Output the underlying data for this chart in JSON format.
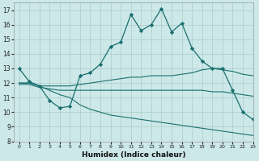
{
  "xlabel": "Humidex (Indice chaleur)",
  "background_color": "#cce8e8",
  "grid_color": "#aacccc",
  "line_color": "#1a6e6e",
  "xlim": [
    -0.5,
    23
  ],
  "ylim": [
    8,
    17.5
  ],
  "xticks": [
    0,
    1,
    2,
    3,
    4,
    5,
    6,
    7,
    8,
    9,
    10,
    11,
    12,
    13,
    14,
    15,
    16,
    17,
    18,
    19,
    20,
    21,
    22,
    23
  ],
  "yticks": [
    8,
    9,
    10,
    11,
    12,
    13,
    14,
    15,
    16,
    17
  ],
  "series": [
    {
      "x": [
        0,
        1,
        2,
        3,
        4,
        5,
        6,
        7,
        8,
        9,
        10,
        11,
        12,
        13,
        14,
        15,
        16,
        17,
        18,
        19,
        20,
        21,
        22,
        23
      ],
      "y": [
        13,
        12.1,
        11.8,
        10.8,
        10.3,
        10.4,
        12.5,
        12.7,
        13.3,
        14.5,
        14.8,
        16.7,
        15.6,
        16.0,
        17.1,
        15.5,
        16.1,
        14.4,
        13.5,
        13.0,
        13.0,
        11.5,
        10.0,
        9.5
      ],
      "marker": true
    },
    {
      "x": [
        0,
        1,
        2,
        3,
        4,
        5,
        6,
        7,
        8,
        9,
        10,
        11,
        12,
        13,
        14,
        15,
        16,
        17,
        18,
        19,
        20,
        21,
        22,
        23
      ],
      "y": [
        12.0,
        12.0,
        11.8,
        11.8,
        11.8,
        11.8,
        11.9,
        12.0,
        12.1,
        12.2,
        12.3,
        12.4,
        12.4,
        12.5,
        12.5,
        12.5,
        12.6,
        12.7,
        12.9,
        13.0,
        12.9,
        12.8,
        12.6,
        12.5
      ],
      "marker": false
    },
    {
      "x": [
        0,
        1,
        2,
        3,
        4,
        5,
        6,
        7,
        8,
        9,
        10,
        11,
        12,
        13,
        14,
        15,
        16,
        17,
        18,
        19,
        20,
        21,
        22,
        23
      ],
      "y": [
        11.9,
        11.9,
        11.7,
        11.6,
        11.5,
        11.5,
        11.5,
        11.5,
        11.5,
        11.5,
        11.5,
        11.5,
        11.5,
        11.5,
        11.5,
        11.5,
        11.5,
        11.5,
        11.5,
        11.4,
        11.4,
        11.3,
        11.2,
        11.1
      ],
      "marker": false
    },
    {
      "x": [
        0,
        1,
        2,
        3,
        4,
        5,
        6,
        7,
        8,
        9,
        10,
        11,
        12,
        13,
        14,
        15,
        16,
        17,
        18,
        19,
        20,
        21,
        22,
        23
      ],
      "y": [
        12.0,
        12.0,
        11.8,
        11.5,
        11.2,
        11.0,
        10.5,
        10.2,
        10.0,
        9.8,
        9.7,
        9.6,
        9.5,
        9.4,
        9.3,
        9.2,
        9.1,
        9.0,
        8.9,
        8.8,
        8.7,
        8.6,
        8.5,
        8.4
      ],
      "marker": false
    }
  ]
}
